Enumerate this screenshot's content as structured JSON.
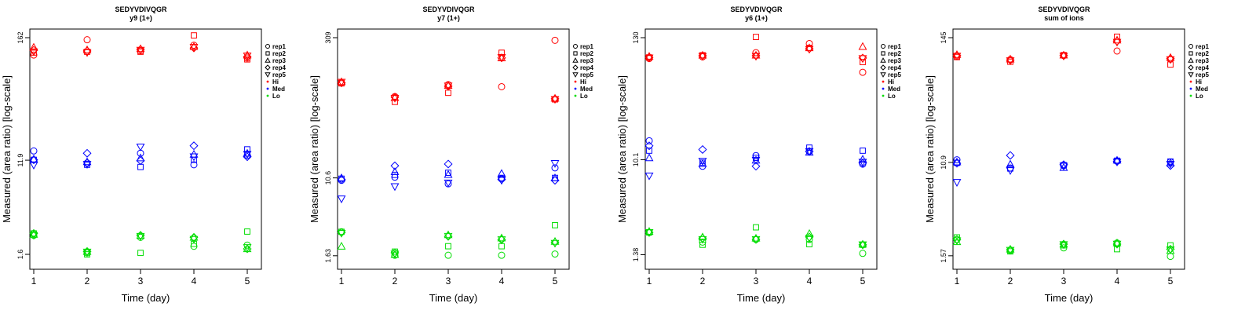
{
  "chart_data": [
    {
      "type": "scatter",
      "title": "SEDYVDIVQGR",
      "subtitle": "y9 (1+)",
      "xlabel": "Time (day)",
      "ylabel": "Measured (area ratio) [log-scale]",
      "x_ticks": [
        1,
        2,
        3,
        4,
        5
      ],
      "y_ticks": [
        {
          "value": 1.6,
          "label": "1.6"
        },
        {
          "value": 11.9,
          "label": "11.9"
        },
        {
          "value": 162,
          "label": "162"
        }
      ],
      "ylim": [
        1.4,
        162
      ],
      "points": [
        {
          "level": "Hi",
          "rep": "rep1",
          "values": [
            112,
            155,
            122,
            138,
            105
          ]
        },
        {
          "level": "Hi",
          "rep": "rep2",
          "values": [
            118,
            120,
            120,
            170,
            102
          ]
        },
        {
          "level": "Hi",
          "rep": "rep3",
          "values": [
            132,
            125,
            128,
            134,
            112
          ]
        },
        {
          "level": "Hi",
          "rep": "rep4",
          "values": [
            124,
            122,
            126,
            130,
            108
          ]
        },
        {
          "level": "Hi",
          "rep": "rep5",
          "values": [
            120,
            118,
            124,
            132,
            110
          ]
        },
        {
          "level": "Med",
          "rep": "rep1",
          "values": [
            14.5,
            11.2,
            13.8,
            10.8,
            13.2
          ]
        },
        {
          "level": "Med",
          "rep": "rep2",
          "values": [
            12.0,
            10.8,
            10.3,
            12.0,
            15.0
          ]
        },
        {
          "level": "Med",
          "rep": "rep3",
          "values": [
            12.2,
            11.5,
            12.5,
            13.5,
            13.8
          ]
        },
        {
          "level": "Med",
          "rep": "rep4",
          "values": [
            12.0,
            13.8,
            11.8,
            16.2,
            12.8
          ]
        },
        {
          "level": "Med",
          "rep": "rep5",
          "values": [
            10.7,
            10.9,
            15.8,
            12.8,
            13.5
          ]
        },
        {
          "level": "Lo",
          "rep": "rep1",
          "values": [
            2.4,
            1.65,
            2.3,
            1.9,
            1.95
          ]
        },
        {
          "level": "Lo",
          "rep": "rep2",
          "values": [
            2.5,
            1.6,
            1.65,
            2.0,
            2.6
          ]
        },
        {
          "level": "Lo",
          "rep": "rep3",
          "values": [
            2.45,
            1.7,
            2.4,
            2.3,
            1.8
          ]
        },
        {
          "level": "Lo",
          "rep": "rep4",
          "values": [
            2.5,
            1.7,
            2.4,
            2.3,
            1.8
          ]
        },
        {
          "level": "Lo",
          "rep": "rep5",
          "values": [
            2.4,
            1.68,
            2.35,
            2.2,
            1.85
          ]
        }
      ]
    },
    {
      "type": "scatter",
      "title": "SEDYVDIVQGR",
      "subtitle": "y7 (1+)",
      "xlabel": "Time (day)",
      "ylabel": "Measured (area ratio) [log-scale]",
      "x_ticks": [
        1,
        2,
        3,
        4,
        5
      ],
      "y_ticks": [
        {
          "value": 1.63,
          "label": "1.63"
        },
        {
          "value": 10.6,
          "label": "10.6"
        },
        {
          "value": 309,
          "label": "309"
        }
      ],
      "ylim": [
        1.45,
        309
      ],
      "points": [
        {
          "level": "Hi",
          "rep": "rep1",
          "values": [
            105,
            75,
            100,
            95,
            290
          ]
        },
        {
          "level": "Hi",
          "rep": "rep2",
          "values": [
            103,
            66,
            82,
            215,
            70
          ]
        },
        {
          "level": "Hi",
          "rep": "rep3",
          "values": [
            107,
            73,
            98,
            190,
            72
          ]
        },
        {
          "level": "Hi",
          "rep": "rep4",
          "values": [
            104,
            74,
            96,
            190,
            71
          ]
        },
        {
          "level": "Hi",
          "rep": "rep5",
          "values": [
            106,
            72,
            97,
            192,
            70
          ]
        },
        {
          "level": "Med",
          "rep": "rep1",
          "values": [
            10.0,
            10.8,
            9.2,
            10.4,
            13.5
          ]
        },
        {
          "level": "Med",
          "rep": "rep2",
          "values": [
            10.4,
            11.4,
            12.0,
            10.6,
            10.6
          ]
        },
        {
          "level": "Med",
          "rep": "rep3",
          "values": [
            10.6,
            12.3,
            11.5,
            11.8,
            10.6
          ]
        },
        {
          "level": "Med",
          "rep": "rep4",
          "values": [
            10.2,
            14.2,
            14.8,
            10.2,
            10.0
          ]
        },
        {
          "level": "Med",
          "rep": "rep5",
          "values": [
            6.4,
            8.6,
            9.4,
            10.0,
            15.0
          ]
        },
        {
          "level": "Lo",
          "rep": "rep1",
          "values": [
            2.9,
            1.65,
            1.65,
            1.65,
            1.7
          ]
        },
        {
          "level": "Lo",
          "rep": "rep2",
          "values": [
            2.9,
            1.8,
            2.05,
            2.05,
            3.4
          ]
        },
        {
          "level": "Lo",
          "rep": "rep3",
          "values": [
            2.05,
            1.68,
            2.7,
            2.5,
            2.3
          ]
        },
        {
          "level": "Lo",
          "rep": "rep4",
          "values": [
            2.85,
            1.75,
            2.6,
            2.4,
            2.25
          ]
        },
        {
          "level": "Lo",
          "rep": "rep5",
          "values": [
            2.8,
            1.7,
            2.6,
            2.4,
            2.2
          ]
        }
      ]
    },
    {
      "type": "scatter",
      "title": "SEDYVDIVQGR",
      "subtitle": "y6 (1+)",
      "xlabel": "Time (day)",
      "ylabel": "Measured (area ratio) [log-scale]",
      "x_ticks": [
        1,
        2,
        3,
        4,
        5
      ],
      "y_ticks": [
        {
          "value": 1.38,
          "label": "1.38"
        },
        {
          "value": 10.1,
          "label": "10.1"
        },
        {
          "value": 130,
          "label": "130"
        }
      ],
      "ylim": [
        1.22,
        130
      ],
      "points": [
        {
          "level": "Hi",
          "rep": "rep1",
          "values": [
            84,
            87,
            95,
            115,
            63
          ]
        },
        {
          "level": "Hi",
          "rep": "rep2",
          "values": [
            86,
            90,
            132,
            105,
            78
          ]
        },
        {
          "level": "Hi",
          "rep": "rep3",
          "values": [
            88,
            90,
            90,
            105,
            108
          ]
        },
        {
          "level": "Hi",
          "rep": "rep4",
          "values": [
            86,
            89,
            89,
            103,
            85
          ]
        },
        {
          "level": "Hi",
          "rep": "rep5",
          "values": [
            85,
            88,
            88,
            102,
            84
          ]
        },
        {
          "level": "Med",
          "rep": "rep1",
          "values": [
            15.0,
            8.8,
            11.0,
            12.0,
            9.2
          ]
        },
        {
          "level": "Med",
          "rep": "rep2",
          "values": [
            12.2,
            9.5,
            10.5,
            13.0,
            12.2
          ]
        },
        {
          "level": "Med",
          "rep": "rep3",
          "values": [
            10.5,
            9.3,
            10.0,
            11.8,
            10.2
          ]
        },
        {
          "level": "Med",
          "rep": "rep4",
          "values": [
            13.5,
            12.5,
            8.8,
            12.0,
            9.4
          ]
        },
        {
          "level": "Med",
          "rep": "rep5",
          "values": [
            7.2,
            9.8,
            10.0,
            12.0,
            9.6
          ]
        },
        {
          "level": "Lo",
          "rep": "rep1",
          "values": [
            2.2,
            1.8,
            1.9,
            1.9,
            1.42
          ]
        },
        {
          "level": "Lo",
          "rep": "rep2",
          "values": [
            2.2,
            1.7,
            2.45,
            1.72,
            1.7
          ]
        },
        {
          "level": "Lo",
          "rep": "rep3",
          "values": [
            2.25,
            2.0,
            1.95,
            2.15,
            1.72
          ]
        },
        {
          "level": "Lo",
          "rep": "rep4",
          "values": [
            2.2,
            1.95,
            1.9,
            2.0,
            1.7
          ]
        },
        {
          "level": "Lo",
          "rep": "rep5",
          "values": [
            2.2,
            1.9,
            1.9,
            1.95,
            1.7
          ]
        }
      ]
    },
    {
      "type": "scatter",
      "title": "SEDYVDIVQGR",
      "subtitle": "sum of ions",
      "xlabel": "Time (day)",
      "ylabel": "Measured (area ratio) [log-scale]",
      "x_ticks": [
        1,
        2,
        3,
        4,
        5
      ],
      "y_ticks": [
        {
          "value": 1.57,
          "label": "1.57"
        },
        {
          "value": 10.9,
          "label": "10.9"
        },
        {
          "value": 145,
          "label": "145"
        }
      ],
      "ylim": [
        1.42,
        145
      ],
      "points": [
        {
          "level": "Hi",
          "rep": "rep1",
          "values": [
            98,
            92,
            100,
            110,
            93
          ]
        },
        {
          "level": "Hi",
          "rep": "rep2",
          "values": [
            97,
            88,
            101,
            148,
            83
          ]
        },
        {
          "level": "Hi",
          "rep": "rep3",
          "values": [
            102,
            93,
            101,
            138,
            96
          ]
        },
        {
          "level": "Hi",
          "rep": "rep4",
          "values": [
            100,
            91,
            100,
            135,
            94
          ]
        },
        {
          "level": "Hi",
          "rep": "rep5",
          "values": [
            99,
            90,
            99,
            132,
            92
          ]
        },
        {
          "level": "Med",
          "rep": "rep1",
          "values": [
            11.5,
            9.7,
            10.2,
            11.2,
            11.0
          ]
        },
        {
          "level": "Med",
          "rep": "rep2",
          "values": [
            10.8,
            9.6,
            10.3,
            11.3,
            11.1
          ]
        },
        {
          "level": "Med",
          "rep": "rep3",
          "values": [
            11.0,
            10.5,
            9.8,
            11.4,
            10.8
          ]
        },
        {
          "level": "Med",
          "rep": "rep4",
          "values": [
            10.7,
            12.6,
            10.4,
            11.1,
            10.2
          ]
        },
        {
          "level": "Med",
          "rep": "rep5",
          "values": [
            7.2,
            9.2,
            10.1,
            11.0,
            10.5
          ]
        },
        {
          "level": "Lo",
          "rep": "rep1",
          "values": [
            2.2,
            1.75,
            1.85,
            2.05,
            1.55
          ]
        },
        {
          "level": "Lo",
          "rep": "rep2",
          "values": [
            2.3,
            1.72,
            1.95,
            1.8,
            1.95
          ]
        },
        {
          "level": "Lo",
          "rep": "rep3",
          "values": [
            2.1,
            1.8,
            2.0,
            2.05,
            1.75
          ]
        },
        {
          "level": "Lo",
          "rep": "rep4",
          "values": [
            2.2,
            1.78,
            2.0,
            2.0,
            1.8
          ]
        },
        {
          "level": "Lo",
          "rep": "rep5",
          "values": [
            2.15,
            1.76,
            1.98,
            2.0,
            1.78
          ]
        }
      ]
    }
  ],
  "legend": [
    {
      "label": "rep1",
      "kind": "shape",
      "shape": "circle"
    },
    {
      "label": "rep2",
      "kind": "shape",
      "shape": "square"
    },
    {
      "label": "rep3",
      "kind": "shape",
      "shape": "triangle"
    },
    {
      "label": "rep4",
      "kind": "shape",
      "shape": "diamond"
    },
    {
      "label": "rep5",
      "kind": "shape",
      "shape": "triangle-down"
    },
    {
      "label": "Hi",
      "kind": "color",
      "color": "#ff0000"
    },
    {
      "label": "Med",
      "kind": "color",
      "color": "#0000ff"
    },
    {
      "label": "Lo",
      "kind": "color",
      "color": "#00dd00"
    }
  ],
  "colors": {
    "Hi": "#ff0000",
    "Med": "#0000ff",
    "Lo": "#00dd00"
  }
}
